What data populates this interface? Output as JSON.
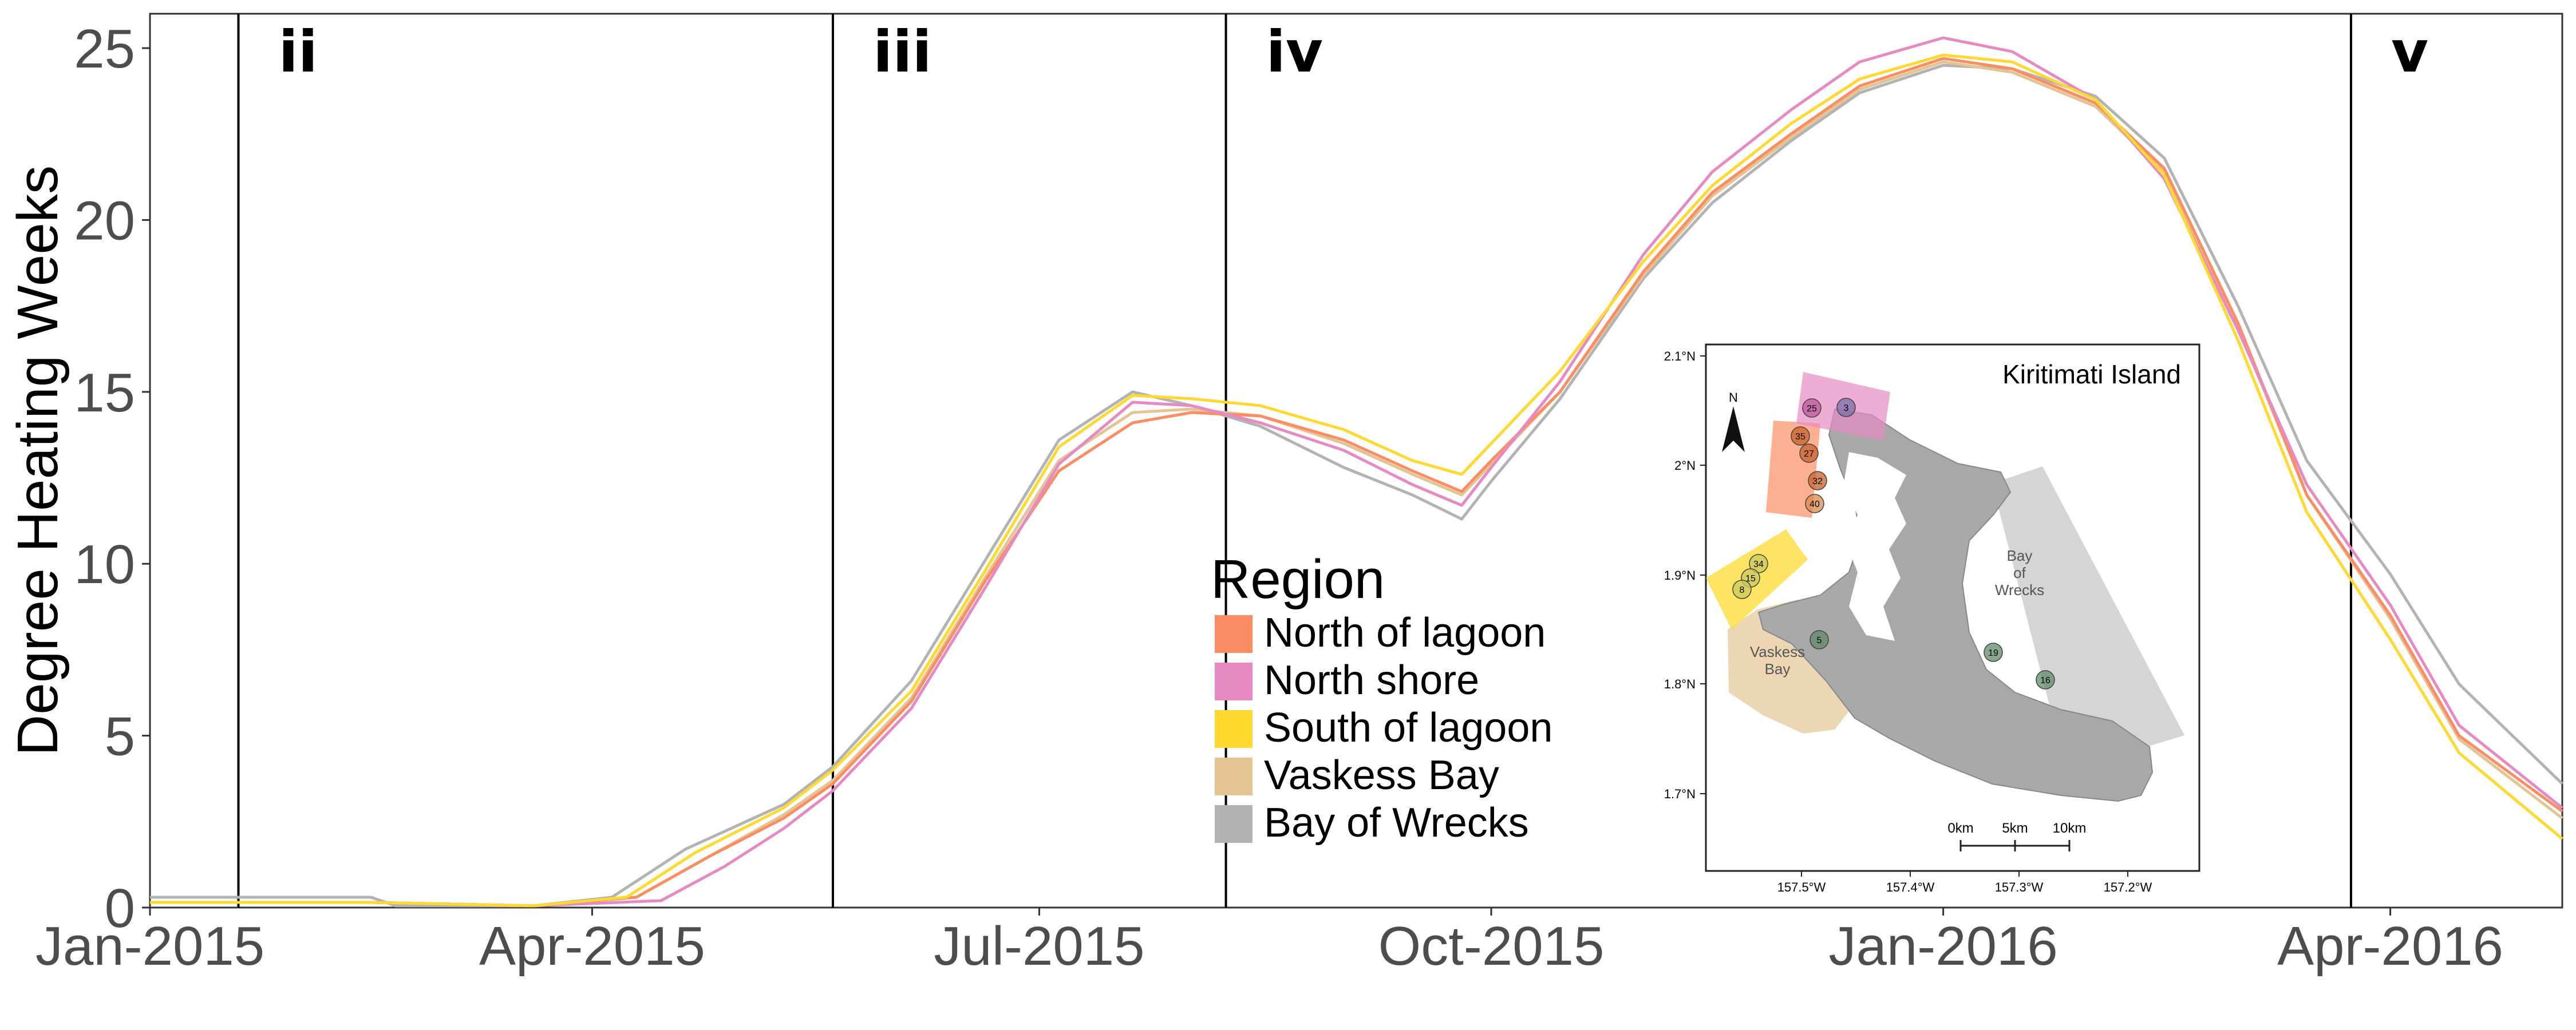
{
  "chart_data": {
    "type": "line",
    "title": "",
    "xlabel": "",
    "ylabel": "Degree Heating Weeks",
    "xlim": [
      "2015-01-01",
      "2016-05-06"
    ],
    "ylim": [
      0,
      26
    ],
    "y_ticks": [
      0,
      5,
      10,
      15,
      20,
      25
    ],
    "x_ticks": [
      {
        "date": "2015-01-01",
        "label": "Jan-2015"
      },
      {
        "date": "2015-04-01",
        "label": "Apr-2015"
      },
      {
        "date": "2015-07-01",
        "label": "Jul-2015"
      },
      {
        "date": "2015-10-01",
        "label": "Oct-2015"
      },
      {
        "date": "2016-01-01",
        "label": "Jan-2016"
      },
      {
        "date": "2016-04-01",
        "label": "Apr-2016"
      }
    ],
    "grid": false,
    "legend_title": "Region",
    "legend_position": "inside-center",
    "phase_markers": [
      {
        "date": "2015-01-19",
        "label": "ii"
      },
      {
        "date": "2015-05-20",
        "label": "iii"
      },
      {
        "date": "2015-08-08",
        "label": "iv"
      },
      {
        "date": "2016-03-24",
        "label": "v"
      }
    ],
    "series": [
      {
        "name": "North of lagoon",
        "color": "#FC8D62",
        "points": [
          [
            "2015-01-01",
            0.15
          ],
          [
            "2015-02-15",
            0.15
          ],
          [
            "2015-03-20",
            0.05
          ],
          [
            "2015-04-10",
            0.3
          ],
          [
            "2015-04-25",
            1.5
          ],
          [
            "2015-05-10",
            2.6
          ],
          [
            "2015-05-20",
            3.6
          ],
          [
            "2015-06-05",
            6.0
          ],
          [
            "2015-06-20",
            9.5
          ],
          [
            "2015-07-05",
            12.7
          ],
          [
            "2015-07-20",
            14.1
          ],
          [
            "2015-08-01",
            14.4
          ],
          [
            "2015-08-15",
            14.3
          ],
          [
            "2015-09-01",
            13.6
          ],
          [
            "2015-09-15",
            12.7
          ],
          [
            "2015-09-25",
            12.1
          ],
          [
            "2015-10-01",
            13.0
          ],
          [
            "2015-10-15",
            15.0
          ],
          [
            "2015-11-01",
            18.5
          ],
          [
            "2015-11-15",
            20.8
          ],
          [
            "2015-12-01",
            22.5
          ],
          [
            "2015-12-15",
            23.9
          ],
          [
            "2016-01-01",
            24.7
          ],
          [
            "2016-01-15",
            24.4
          ],
          [
            "2016-02-01",
            23.4
          ],
          [
            "2016-02-15",
            21.5
          ],
          [
            "2016-03-01",
            17.0
          ],
          [
            "2016-03-15",
            12.0
          ],
          [
            "2016-04-01",
            8.5
          ],
          [
            "2016-04-15",
            5.0
          ],
          [
            "2016-05-06",
            2.8
          ]
        ]
      },
      {
        "name": "North shore",
        "color": "#E78AC3",
        "points": [
          [
            "2015-01-01",
            0.15
          ],
          [
            "2015-02-15",
            0.15
          ],
          [
            "2015-03-20",
            0.05
          ],
          [
            "2015-04-15",
            0.2
          ],
          [
            "2015-04-28",
            1.2
          ],
          [
            "2015-05-10",
            2.3
          ],
          [
            "2015-05-20",
            3.4
          ],
          [
            "2015-06-05",
            5.8
          ],
          [
            "2015-06-20",
            9.3
          ],
          [
            "2015-07-05",
            12.9
          ],
          [
            "2015-07-20",
            14.7
          ],
          [
            "2015-08-01",
            14.6
          ],
          [
            "2015-08-15",
            14.1
          ],
          [
            "2015-09-01",
            13.3
          ],
          [
            "2015-09-15",
            12.3
          ],
          [
            "2015-09-25",
            11.7
          ],
          [
            "2015-10-01",
            12.8
          ],
          [
            "2015-10-15",
            15.3
          ],
          [
            "2015-11-01",
            19.0
          ],
          [
            "2015-11-15",
            21.4
          ],
          [
            "2015-12-01",
            23.2
          ],
          [
            "2015-12-15",
            24.6
          ],
          [
            "2016-01-01",
            25.3
          ],
          [
            "2016-01-15",
            24.9
          ],
          [
            "2016-02-01",
            23.5
          ],
          [
            "2016-02-15",
            21.2
          ],
          [
            "2016-03-01",
            16.8
          ],
          [
            "2016-03-15",
            12.3
          ],
          [
            "2016-04-01",
            8.8
          ],
          [
            "2016-04-15",
            5.3
          ],
          [
            "2016-05-06",
            2.9
          ]
        ]
      },
      {
        "name": "South of lagoon",
        "color": "#FFD92F",
        "points": [
          [
            "2015-01-01",
            0.15
          ],
          [
            "2015-02-15",
            0.15
          ],
          [
            "2015-03-20",
            0.05
          ],
          [
            "2015-04-08",
            0.3
          ],
          [
            "2015-04-22",
            1.6
          ],
          [
            "2015-05-10",
            2.9
          ],
          [
            "2015-05-20",
            4.0
          ],
          [
            "2015-06-05",
            6.3
          ],
          [
            "2015-06-20",
            9.8
          ],
          [
            "2015-07-05",
            13.4
          ],
          [
            "2015-07-20",
            14.9
          ],
          [
            "2015-08-01",
            14.8
          ],
          [
            "2015-08-15",
            14.6
          ],
          [
            "2015-09-01",
            13.9
          ],
          [
            "2015-09-15",
            13.0
          ],
          [
            "2015-09-25",
            12.6
          ],
          [
            "2015-10-01",
            13.5
          ],
          [
            "2015-10-15",
            15.6
          ],
          [
            "2015-11-01",
            18.8
          ],
          [
            "2015-11-15",
            21.0
          ],
          [
            "2015-12-01",
            22.8
          ],
          [
            "2015-12-15",
            24.1
          ],
          [
            "2016-01-01",
            24.8
          ],
          [
            "2016-01-15",
            24.6
          ],
          [
            "2016-02-01",
            23.5
          ],
          [
            "2016-02-15",
            21.3
          ],
          [
            "2016-03-01",
            16.5
          ],
          [
            "2016-03-15",
            11.5
          ],
          [
            "2016-04-01",
            7.8
          ],
          [
            "2016-04-15",
            4.5
          ],
          [
            "2016-05-06",
            2.0
          ]
        ]
      },
      {
        "name": "Vaskess Bay",
        "color": "#E5C494",
        "points": [
          [
            "2015-01-01",
            0.15
          ],
          [
            "2015-02-15",
            0.15
          ],
          [
            "2015-03-20",
            0.05
          ],
          [
            "2015-04-10",
            0.3
          ],
          [
            "2015-04-25",
            1.5
          ],
          [
            "2015-05-10",
            2.7
          ],
          [
            "2015-05-20",
            3.7
          ],
          [
            "2015-06-05",
            6.1
          ],
          [
            "2015-06-20",
            9.6
          ],
          [
            "2015-07-05",
            13.0
          ],
          [
            "2015-07-20",
            14.4
          ],
          [
            "2015-08-01",
            14.5
          ],
          [
            "2015-08-15",
            14.3
          ],
          [
            "2015-09-01",
            13.5
          ],
          [
            "2015-09-15",
            12.6
          ],
          [
            "2015-09-25",
            12.0
          ],
          [
            "2015-10-01",
            12.9
          ],
          [
            "2015-10-15",
            15.0
          ],
          [
            "2015-11-01",
            18.4
          ],
          [
            "2015-11-15",
            20.7
          ],
          [
            "2015-12-01",
            22.4
          ],
          [
            "2015-12-15",
            23.8
          ],
          [
            "2016-01-01",
            24.6
          ],
          [
            "2016-01-15",
            24.3
          ],
          [
            "2016-02-01",
            23.3
          ],
          [
            "2016-02-15",
            21.4
          ],
          [
            "2016-03-01",
            16.9
          ],
          [
            "2016-03-15",
            12.0
          ],
          [
            "2016-04-01",
            8.4
          ],
          [
            "2016-04-15",
            4.9
          ],
          [
            "2016-05-06",
            2.6
          ]
        ]
      },
      {
        "name": "Bay of Wrecks",
        "color": "#B3B3B3",
        "points": [
          [
            "2015-01-01",
            0.3
          ],
          [
            "2015-02-15",
            0.3
          ],
          [
            "2015-02-20",
            0.05
          ],
          [
            "2015-03-20",
            0.05
          ],
          [
            "2015-04-05",
            0.3
          ],
          [
            "2015-04-20",
            1.7
          ],
          [
            "2015-05-10",
            3.0
          ],
          [
            "2015-05-20",
            4.1
          ],
          [
            "2015-06-05",
            6.6
          ],
          [
            "2015-06-20",
            10.1
          ],
          [
            "2015-07-05",
            13.6
          ],
          [
            "2015-07-20",
            15.0
          ],
          [
            "2015-08-01",
            14.6
          ],
          [
            "2015-08-15",
            14.0
          ],
          [
            "2015-09-01",
            12.8
          ],
          [
            "2015-09-15",
            12.0
          ],
          [
            "2015-09-25",
            11.3
          ],
          [
            "2015-10-01",
            12.4
          ],
          [
            "2015-10-15",
            14.8
          ],
          [
            "2015-11-01",
            18.3
          ],
          [
            "2015-11-15",
            20.5
          ],
          [
            "2015-12-01",
            22.3
          ],
          [
            "2015-12-15",
            23.7
          ],
          [
            "2016-01-01",
            24.5
          ],
          [
            "2016-01-15",
            24.4
          ],
          [
            "2016-02-01",
            23.6
          ],
          [
            "2016-02-15",
            21.8
          ],
          [
            "2016-03-01",
            17.5
          ],
          [
            "2016-03-15",
            13.0
          ],
          [
            "2016-04-01",
            9.7
          ],
          [
            "2016-04-15",
            6.5
          ],
          [
            "2016-05-06",
            3.6
          ]
        ]
      }
    ]
  },
  "inset_map": {
    "title": "Kiritimati Island",
    "north_label": "N",
    "y_ticks": [
      "2.1°N",
      "2°N",
      "1.9°N",
      "1.8°N",
      "1.7°N"
    ],
    "x_ticks": [
      "157.5°W",
      "157.4°W",
      "157.3°W",
      "157.2°W"
    ],
    "scale_labels": [
      "0km",
      "5km",
      "10km"
    ],
    "region_labels": [
      {
        "text": "Bay",
        "color": "#555555"
      },
      {
        "text": "of",
        "color": "#555555"
      },
      {
        "text": "Wrecks",
        "color": "#555555"
      },
      {
        "text": "Vaskess",
        "color": "#555555"
      },
      {
        "text": "Bay",
        "color": "#555555"
      }
    ],
    "sites": [
      {
        "label": "25",
        "color": "#c0569e"
      },
      {
        "label": "3",
        "color": "#7a6fa8"
      },
      {
        "label": "35",
        "color": "#c8602a"
      },
      {
        "label": "27",
        "color": "#c8602a"
      },
      {
        "label": "32",
        "color": "#c8602a"
      },
      {
        "label": "40",
        "color": "#d9884a"
      },
      {
        "label": "34",
        "color": "#c9c95a"
      },
      {
        "label": "15",
        "color": "#c9c95a"
      },
      {
        "label": "8",
        "color": "#c9c95a"
      },
      {
        "label": "5",
        "color": "#5f8a6a"
      },
      {
        "label": "19",
        "color": "#5f8a6a"
      },
      {
        "label": "16",
        "color": "#5f8a6a"
      }
    ],
    "region_colors": {
      "north_shore": "#E78AC3",
      "north_of_lagoon": "#FC8D62",
      "south_of_lagoon": "#FFD92F",
      "vaskess_bay": "#E5C494",
      "bay_of_wrecks": "#B3B3B3",
      "land": "#A8A8A8"
    }
  }
}
